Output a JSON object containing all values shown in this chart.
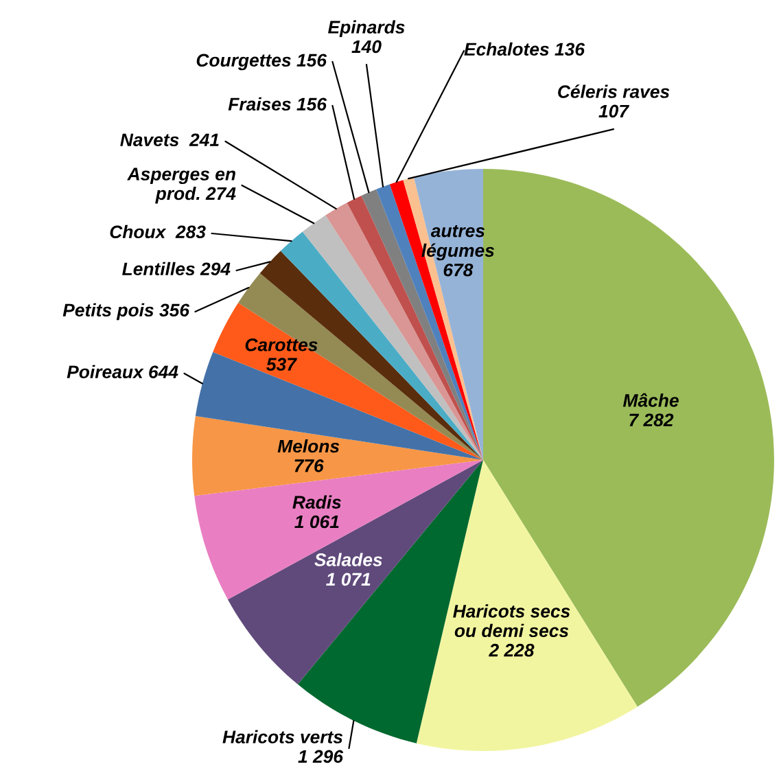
{
  "chart_data": {
    "type": "pie",
    "categories": [
      "Mâche",
      "Haricots secs\nou demi secs",
      "Haricots verts",
      "Salades",
      "Radis",
      "Melons",
      "Poireaux",
      "Carottes",
      "Petits pois",
      "Lentilles",
      "Choux ",
      "Asperges en\nprod.",
      "Navets ",
      "Fraises",
      "Courgettes",
      "Epinards",
      "Echalotes",
      "Céleris raves",
      "autres\nlégumes"
    ],
    "values": [
      7282,
      2228,
      1296,
      1071,
      1061,
      776,
      644,
      537,
      356,
      294,
      283,
      274,
      241,
      156,
      156,
      140,
      136,
      107,
      678
    ],
    "value_labels": [
      "7 282",
      "2 228",
      "1 296",
      "1 071",
      "1 061",
      "776",
      "644",
      "537",
      "356",
      "294",
      "283",
      "274",
      "241",
      "156",
      "156",
      "140",
      "136",
      "107",
      "678"
    ],
    "colors": [
      "#9bbb59",
      "#f2f5a0",
      "#00692f",
      "#604a7b",
      "#e97fc2",
      "#f79646",
      "#4472a8",
      "#ff5a1a",
      "#948a54",
      "#5a2d0c",
      "#4bacc6",
      "#c0c0c0",
      "#d99694",
      "#c0504d",
      "#808080",
      "#4f81bd",
      "#ff0000",
      "#fac090",
      "#95b3d7"
    ]
  }
}
